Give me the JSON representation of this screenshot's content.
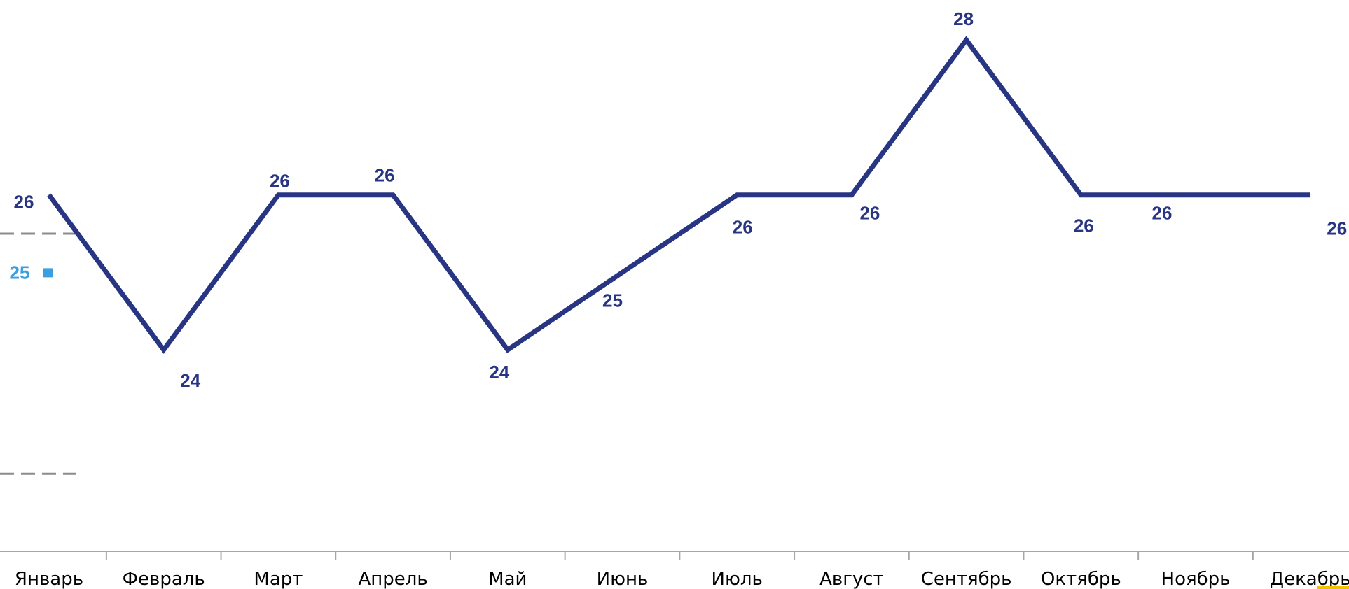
{
  "chart_data": {
    "type": "line",
    "title": "",
    "xlabel": "",
    "ylabel": "",
    "categories": [
      "Январь",
      "Февраль",
      "Март",
      "Апрель",
      "Май",
      "Июнь",
      "Июль",
      "Август",
      "Сентябрь",
      "Октябрь",
      "Ноябрь",
      "Декабрь"
    ],
    "series": [
      {
        "values": [
          26,
          24,
          26,
          26,
          24,
          25,
          26,
          26,
          28,
          26,
          26,
          26
        ],
        "color": "#283583"
      }
    ],
    "value_labels": [
      "26",
      "24",
      "26",
      "26",
      "24",
      "25",
      "26",
      "26",
      "28",
      "26",
      "26",
      "26"
    ],
    "average": {
      "value": 25,
      "label": "25",
      "color": "#3a9ee0"
    },
    "reference_lines": [
      25.5,
      22.4
    ],
    "ylim": [
      21.4,
      28.3
    ],
    "grid": false,
    "legend": "none",
    "axis_color": "#a6a6a6",
    "reference_line_color": "#8c8c8c",
    "accent_color": "#f2c200"
  }
}
